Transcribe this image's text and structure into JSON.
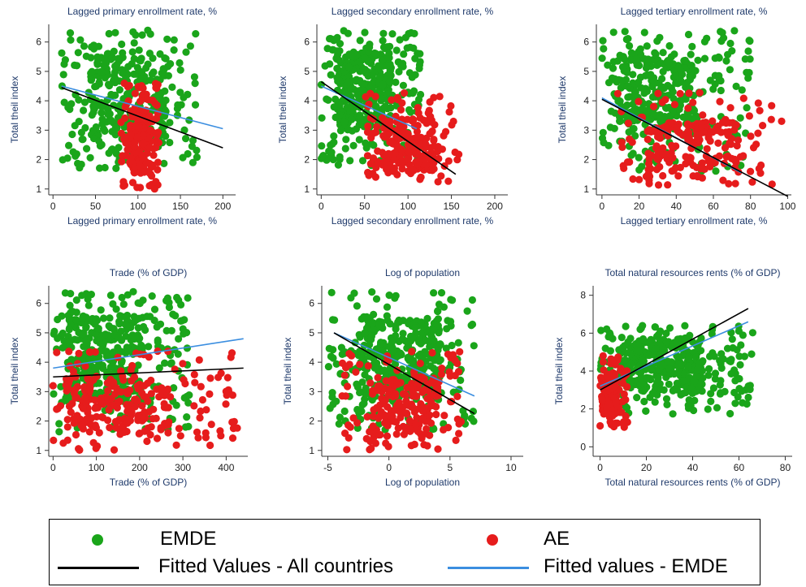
{
  "colors": {
    "emde": "#1aa51a",
    "ae": "#e61c1c",
    "fit_all": "#000000",
    "fit_emde": "#3b8ee0"
  },
  "legend": {
    "emde": "EMDE",
    "ae": "AE",
    "fit_all": "Fitted Values - All countries",
    "fit_emde": "Fitted values - EMDE"
  },
  "chart_data": [
    {
      "type": "scatter",
      "title": "Lagged primary enrollment rate, %",
      "xlabel": "Lagged primary enrollment rate, %",
      "ylabel": "Total theil index",
      "xlim": [
        -5,
        215
      ],
      "ylim": [
        0.8,
        6.6
      ],
      "xticks": [
        0,
        50,
        100,
        150,
        200
      ],
      "yticks": [
        1,
        2,
        3,
        4,
        5,
        6
      ],
      "fit_all": [
        [
          10,
          4.45
        ],
        [
          200,
          2.4
        ]
      ],
      "fit_emde": [
        [
          10,
          4.5
        ],
        [
          200,
          3.05
        ]
      ],
      "emde_cloud": {
        "x": [
          10,
          170
        ],
        "y": [
          1.7,
          6.4
        ],
        "n": 360,
        "cx": 85,
        "cy": 4.5
      },
      "ae_cloud": {
        "x": [
          80,
          125
        ],
        "y": [
          1.0,
          4.6
        ],
        "n": 200,
        "cx": 103,
        "cy": 2.3
      }
    },
    {
      "type": "scatter",
      "title": "Lagged secondary enrollment rate, %",
      "xlabel": "Lagged secondary enrollment rate, %",
      "ylabel": "Total theil index",
      "xlim": [
        -5,
        215
      ],
      "ylim": [
        0.8,
        6.6
      ],
      "xticks": [
        0,
        50,
        100,
        150,
        200
      ],
      "yticks": [
        1,
        2,
        3,
        4,
        5,
        6
      ],
      "fit_all": [
        [
          0,
          4.65
        ],
        [
          155,
          1.5
        ]
      ],
      "fit_emde": [
        [
          0,
          4.5
        ],
        [
          110,
          3.05
        ]
      ],
      "emde_cloud": {
        "x": [
          0,
          115
        ],
        "y": [
          1.8,
          6.4
        ],
        "n": 420,
        "cx": 40,
        "cy": 4.7
      },
      "ae_cloud": {
        "x": [
          50,
          160
        ],
        "y": [
          1.1,
          4.3
        ],
        "n": 220,
        "cx": 95,
        "cy": 2.1
      }
    },
    {
      "type": "scatter",
      "title": "Lagged tertiary enrollment rate, %",
      "xlabel": "Lagged tertiary enrollment rate, %",
      "ylabel": "Total theil index",
      "xlim": [
        -3,
        102
      ],
      "ylim": [
        0.8,
        6.6
      ],
      "xticks": [
        0,
        20,
        40,
        60,
        80,
        100
      ],
      "yticks": [
        1,
        2,
        3,
        4,
        5,
        6
      ],
      "fit_all": [
        [
          0,
          4.05
        ],
        [
          100,
          0.75
        ]
      ],
      "fit_emde": [
        [
          0,
          4.1
        ],
        [
          75,
          1.55
        ]
      ],
      "emde_cloud": {
        "x": [
          0,
          80
        ],
        "y": [
          1.6,
          6.4
        ],
        "n": 380,
        "cx": 12,
        "cy": 4.6
      },
      "ae_cloud": {
        "x": [
          8,
          97
        ],
        "y": [
          1.1,
          4.3
        ],
        "n": 220,
        "cx": 45,
        "cy": 1.8
      }
    },
    {
      "type": "scatter",
      "title": "Trade (% of GDP)",
      "xlabel": "Trade (% of GDP)",
      "ylabel": "Total theil index",
      "xlim": [
        -10,
        450
      ],
      "ylim": [
        0.8,
        6.6
      ],
      "xticks": [
        0,
        100,
        200,
        300,
        400
      ],
      "yticks": [
        1,
        2,
        3,
        4,
        5,
        6
      ],
      "fit_all": [
        [
          0,
          3.5
        ],
        [
          440,
          3.8
        ]
      ],
      "fit_emde": [
        [
          0,
          3.8
        ],
        [
          440,
          4.8
        ]
      ],
      "emde_cloud": {
        "x": [
          0,
          320
        ],
        "y": [
          1.5,
          6.4
        ],
        "n": 420,
        "cx": 70,
        "cy": 4.4
      },
      "ae_cloud": {
        "x": [
          0,
          430
        ],
        "y": [
          1.0,
          4.4
        ],
        "n": 260,
        "cx": 70,
        "cy": 2.2
      }
    },
    {
      "type": "scatter",
      "title": "Log of population",
      "xlabel": "Log of population",
      "ylabel": "Total theil index",
      "xlim": [
        -5.5,
        11
      ],
      "ylim": [
        0.8,
        6.6
      ],
      "xticks": [
        -5,
        0,
        5,
        10
      ],
      "yticks": [
        1,
        2,
        3,
        4,
        5,
        6
      ],
      "fit_all": [
        [
          -4.5,
          5.0
        ],
        [
          7,
          2.25
        ]
      ],
      "fit_emde": [
        [
          -4.5,
          5.0
        ],
        [
          7,
          2.85
        ]
      ],
      "emde_cloud": {
        "x": [
          -5,
          7
        ],
        "y": [
          1.7,
          6.4
        ],
        "n": 420,
        "cx": 1,
        "cy": 4.3
      },
      "ae_cloud": {
        "x": [
          -4,
          6
        ],
        "y": [
          1.0,
          4.4
        ],
        "n": 220,
        "cx": 2,
        "cy": 2.2
      }
    },
    {
      "type": "scatter",
      "title": "Total natural resources rents (% of GDP)",
      "xlabel": "Total natural resources rents (% of GDP)",
      "ylabel": "Total theil index",
      "xlim": [
        -3,
        83
      ],
      "ylim": [
        -0.5,
        8.5
      ],
      "xticks": [
        0,
        20,
        40,
        60,
        80
      ],
      "yticks": [
        0,
        2,
        4,
        6,
        8
      ],
      "fit_all": [
        [
          0,
          3.0
        ],
        [
          64,
          7.3
        ]
      ],
      "fit_emde": [
        [
          0,
          3.2
        ],
        [
          64,
          6.6
        ]
      ],
      "emde_cloud": {
        "x": [
          0,
          66
        ],
        "y": [
          1.7,
          6.4
        ],
        "n": 420,
        "cx": 18,
        "cy": 4.8
      },
      "ae_cloud": {
        "x": [
          0,
          12
        ],
        "y": [
          1.0,
          4.8
        ],
        "n": 160,
        "cx": 2,
        "cy": 2.5
      }
    }
  ]
}
